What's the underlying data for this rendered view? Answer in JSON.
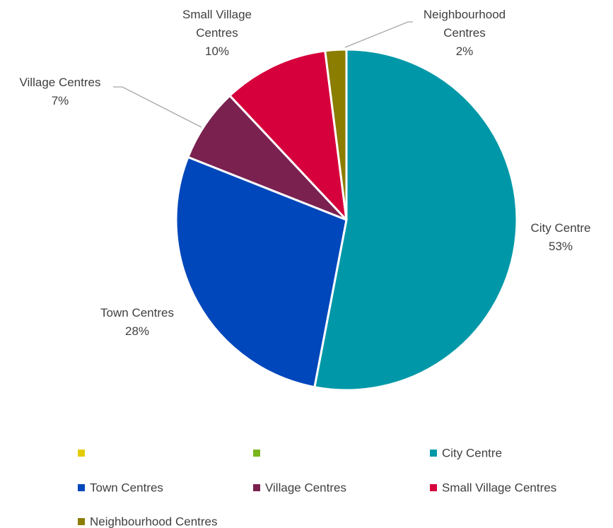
{
  "chart_data": {
    "type": "pie",
    "categories": [
      null,
      null,
      "City Centre",
      "Town Centres",
      "Village Centres",
      "Small Village Centres",
      "Neighbourhood Centres"
    ],
    "values": [
      0,
      0,
      53,
      28,
      7,
      10,
      2
    ],
    "value_labels": [
      null,
      null,
      "53%",
      "28%",
      "7%",
      "10%",
      "2%"
    ],
    "colors": [
      "#e3cc00",
      "#7ab51d",
      "#0098a8",
      "#0047bb",
      "#7a2150",
      "#d6003c",
      "#8a7d00"
    ],
    "legend": "bottom"
  }
}
